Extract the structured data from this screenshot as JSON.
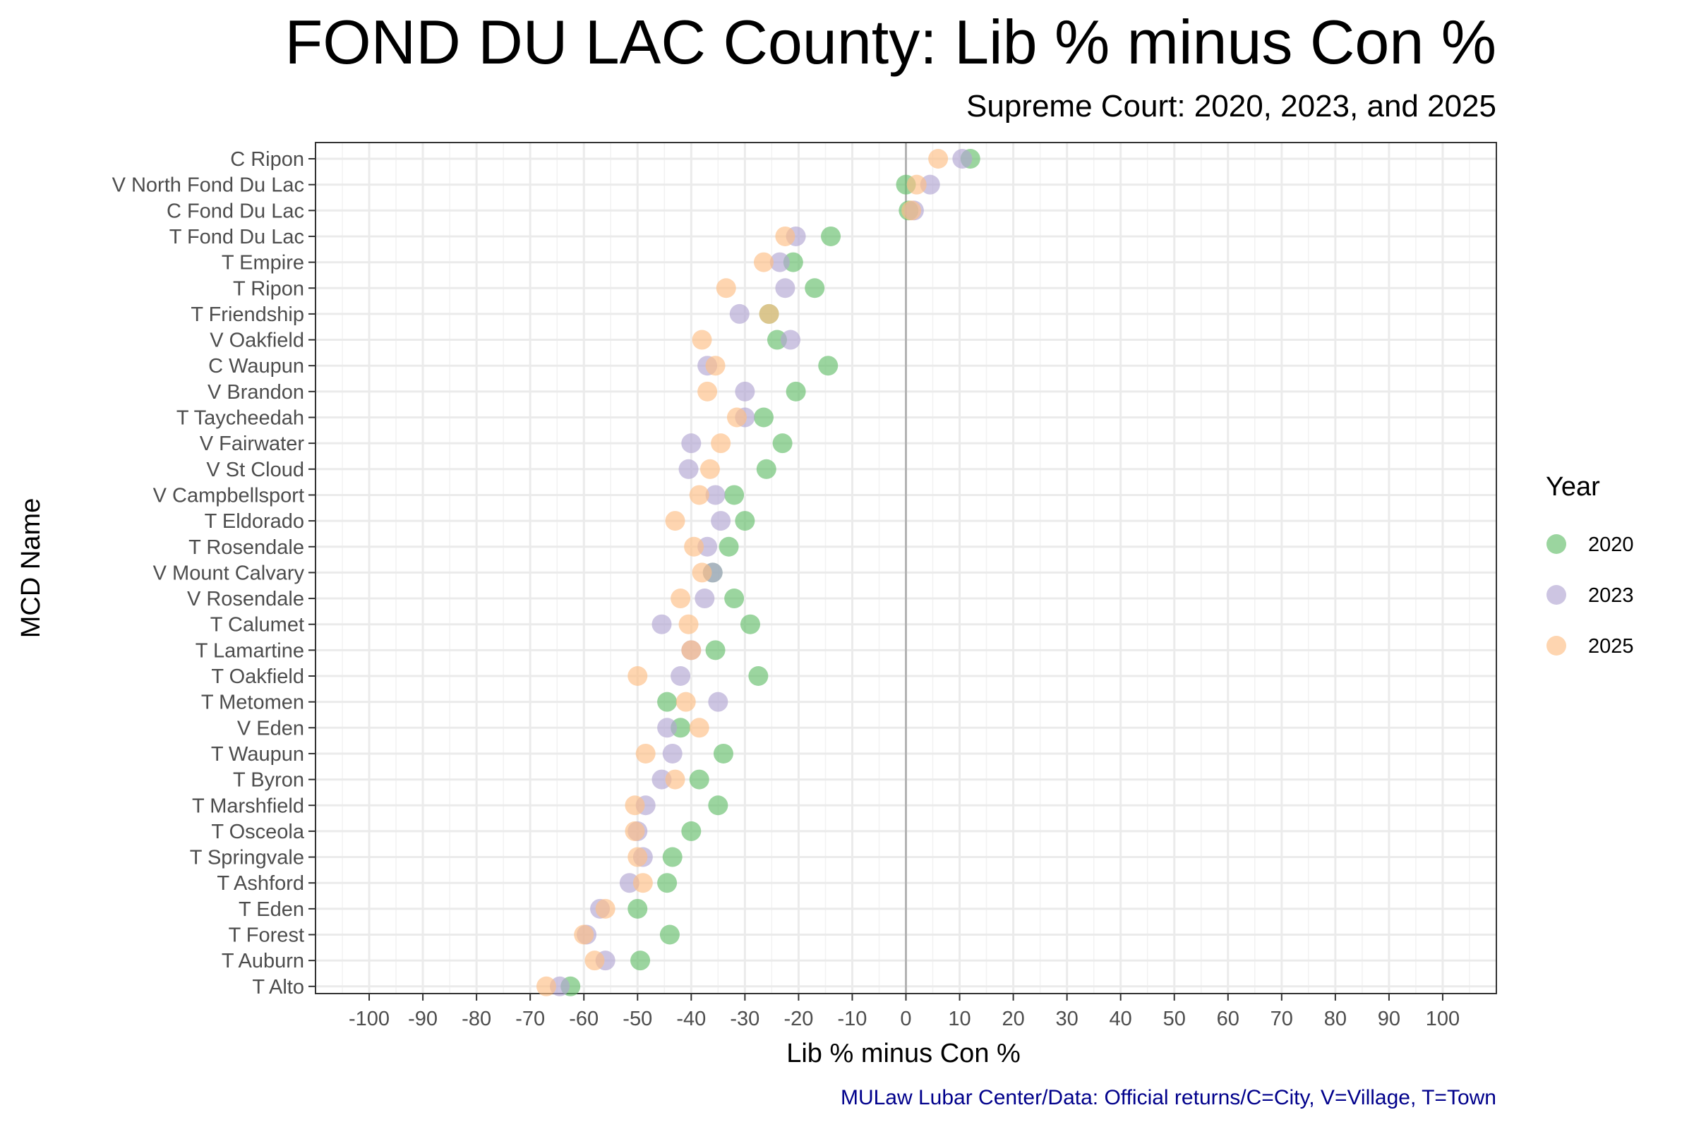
{
  "chart_data": {
    "type": "scatter",
    "title": "FOND DU LAC County: Lib % minus Con %",
    "subtitle": "Supreme Court: 2020, 2023, and 2025",
    "xlabel": "Lib % minus Con %",
    "ylabel": "MCD Name",
    "caption": "MULaw Lubar Center/Data: Official returns/C=City, V=Village, T=Town",
    "xlim": [
      -110,
      110
    ],
    "x_ticks": [
      -100,
      -90,
      -80,
      -70,
      -60,
      -50,
      -40,
      -30,
      -20,
      -10,
      0,
      10,
      20,
      30,
      40,
      50,
      60,
      70,
      80,
      90,
      100
    ],
    "x_tick_labels": [
      "-100",
      "-90",
      "-80",
      "-70",
      "-60",
      "-50",
      "-40",
      "-30",
      "-20",
      "-10",
      "0",
      "10",
      "20",
      "30",
      "40",
      "50",
      "60",
      "70",
      "80",
      "90",
      "100"
    ],
    "reference_line_x": 0,
    "grid": true,
    "legend": {
      "title": "Year",
      "position": "right"
    },
    "categories": [
      "C Ripon",
      "V North Fond Du Lac",
      "C Fond Du Lac",
      "T Fond Du Lac",
      "T Empire",
      "T Ripon",
      "T Friendship",
      "V Oakfield",
      "C Waupun",
      "V Brandon",
      "T Taycheedah",
      "V Fairwater",
      "V St Cloud",
      "V Campbellsport",
      "T Eldorado",
      "T Rosendale",
      "V Mount Calvary",
      "V Rosendale",
      "T Calumet",
      "T Lamartine",
      "T Oakfield",
      "T Metomen",
      "V Eden",
      "T Waupun",
      "T Byron",
      "T Marshfield",
      "T Osceola",
      "T Springvale",
      "T Ashford",
      "T Eden",
      "T Forest",
      "T Auburn",
      "T Alto"
    ],
    "series": [
      {
        "name": "2020",
        "color": "#66bf6b",
        "values": [
          12,
          0,
          0.5,
          -14,
          -21,
          -17,
          -25.5,
          -24,
          -14.5,
          -20.5,
          -26.5,
          -23,
          -26,
          -32,
          -30,
          -33,
          -36,
          -32,
          -29,
          -35.5,
          -27.5,
          -44.5,
          -42,
          -34,
          -38.5,
          -35,
          -40,
          -43.5,
          -44.5,
          -50,
          -44,
          -49.5,
          -62.5
        ]
      },
      {
        "name": "2023",
        "color": "#b2a6d3",
        "values": [
          10.5,
          4.5,
          1.5,
          -20.5,
          -23.5,
          -22.5,
          -31,
          -21.5,
          -37,
          -30,
          -30,
          -40,
          -40.5,
          -35.5,
          -34.5,
          -37,
          -36,
          -37.5,
          -45.5,
          -40,
          -42,
          -35,
          -44.5,
          -43.5,
          -45.5,
          -48.5,
          -50,
          -49,
          -51.5,
          -57,
          -59.5,
          -56,
          -64.5
        ]
      },
      {
        "name": "2025",
        "color": "#fdbf85",
        "values": [
          6,
          2,
          1,
          -22.5,
          -26.5,
          -33.5,
          -25.5,
          -38,
          -35.5,
          -37,
          -31.5,
          -34.5,
          -36.5,
          -38.5,
          -43,
          -39.5,
          -38,
          -42,
          -40.5,
          -40,
          -50,
          -41,
          -38.5,
          -48.5,
          -43,
          -50.5,
          -50.5,
          -50,
          -49,
          -56,
          -60,
          -58,
          -67
        ]
      }
    ]
  }
}
